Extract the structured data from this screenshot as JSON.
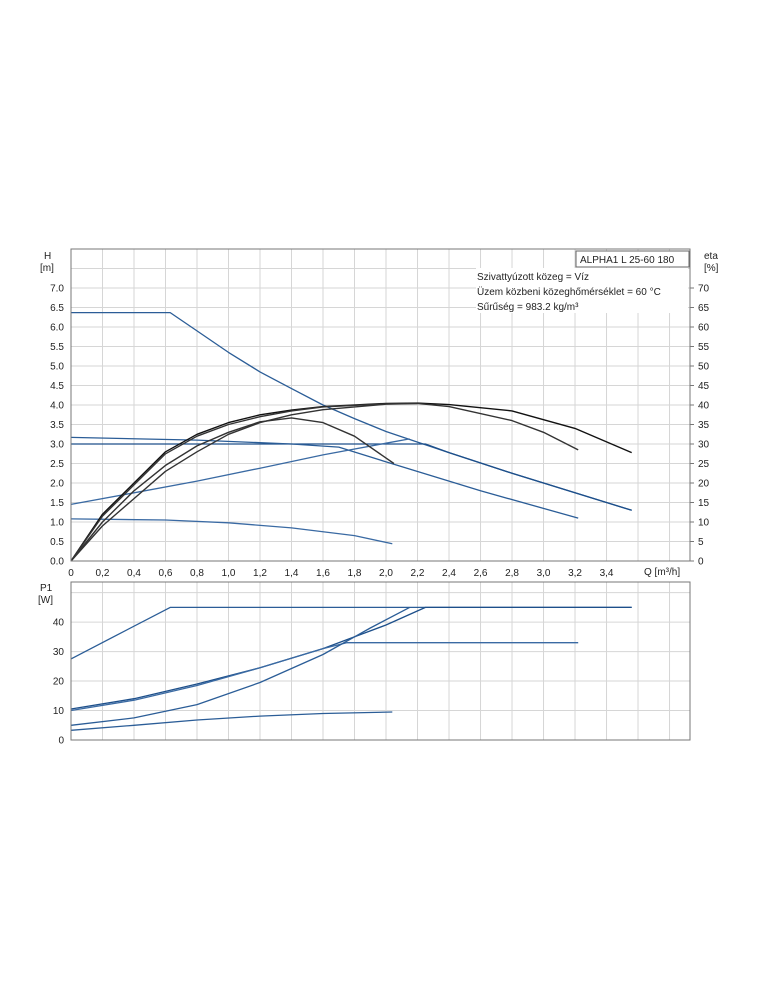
{
  "chart_data": [
    {
      "type": "line",
      "title": "ALPHA1 L 25-60 180",
      "annotations": [
        "Szivattyúzott közeg = Víz",
        "Üzem közbeni közeghőmérséklet = 60 °C",
        "Sűrűség = 983.2 kg/m³"
      ],
      "xlabel": "Q [m³/h]",
      "ylabel": "H",
      "ylabel_unit": "[m]",
      "y2label": "eta",
      "y2label_unit": "[%]",
      "xlim": [
        0,
        3.93
      ],
      "ylim": [
        0,
        8
      ],
      "y2lim": [
        0,
        80
      ],
      "grid": true,
      "xticks": [
        "0",
        "0,2",
        "0,4",
        "0,6",
        "0,8",
        "1,0",
        "1,2",
        "1,4",
        "1,6",
        "1,8",
        "2,0",
        "2,2",
        "2,4",
        "2,6",
        "2,8",
        "3,0",
        "3,2",
        "3,4"
      ],
      "yticks": [
        "0.0",
        "0.5",
        "1.0",
        "1.5",
        "2.0",
        "2.5",
        "3.0",
        "3.5",
        "4.0",
        "4.5",
        "5.0",
        "5.5",
        "6.0",
        "6.5",
        "7.0"
      ],
      "y2ticks": [
        "0",
        "5",
        "10",
        "15",
        "20",
        "25",
        "30",
        "35",
        "40",
        "45",
        "50",
        "55",
        "60",
        "65",
        "70"
      ],
      "series": [
        {
          "name": "H max curve",
          "axis": "H",
          "color": "#2b5d97",
          "points": [
            [
              0,
              6.37
            ],
            [
              0.63,
              6.37
            ],
            [
              0.8,
              5.9
            ],
            [
              1.0,
              5.35
            ],
            [
              1.2,
              4.85
            ],
            [
              1.4,
              4.42
            ],
            [
              1.6,
              4.0
            ],
            [
              1.8,
              3.65
            ],
            [
              2.0,
              3.32
            ],
            [
              2.2,
              3.05
            ],
            [
              2.4,
              2.78
            ],
            [
              2.8,
              2.25
            ],
            [
              3.2,
              1.75
            ],
            [
              3.56,
              1.3
            ]
          ]
        },
        {
          "name": "H constant pressure",
          "axis": "H",
          "color": "#1d4f8a",
          "points": [
            [
              0,
              3.0
            ],
            [
              2.25,
              3.0
            ],
            [
              2.4,
              2.78
            ],
            [
              2.8,
              2.25
            ],
            [
              3.2,
              1.75
            ],
            [
              3.56,
              1.3
            ]
          ]
        },
        {
          "name": "H proportional pressure high",
          "axis": "H",
          "color": "#2b5d97",
          "points": [
            [
              0,
              3.17
            ],
            [
              0.8,
              3.1
            ],
            [
              1.4,
              3.0
            ],
            [
              1.7,
              2.92
            ],
            [
              2.05,
              2.48
            ],
            [
              2.6,
              1.8
            ],
            [
              3.22,
              1.1
            ]
          ]
        },
        {
          "name": "H proportional pressure rising",
          "axis": "H",
          "color": "#3a6aa3",
          "points": [
            [
              0,
              1.45
            ],
            [
              0.4,
              1.75
            ],
            [
              0.8,
              2.05
            ],
            [
              1.2,
              2.38
            ],
            [
              1.6,
              2.72
            ],
            [
              2.0,
              3.02
            ],
            [
              2.15,
              3.13
            ]
          ]
        },
        {
          "name": "H min curve",
          "axis": "H",
          "color": "#3a6aa3",
          "points": [
            [
              0,
              1.08
            ],
            [
              0.6,
              1.05
            ],
            [
              1.0,
              0.98
            ],
            [
              1.4,
              0.85
            ],
            [
              1.8,
              0.65
            ],
            [
              2.04,
              0.44
            ]
          ]
        },
        {
          "name": "eta curve 1",
          "axis": "eta",
          "color": "#111111",
          "points": [
            [
              0,
              0
            ],
            [
              0.2,
              12
            ],
            [
              0.4,
              20
            ],
            [
              0.6,
              28
            ],
            [
              0.8,
              32.5
            ],
            [
              1.0,
              35.5
            ],
            [
              1.2,
              37.5
            ],
            [
              1.4,
              38.7
            ],
            [
              1.6,
              39.6
            ],
            [
              2.0,
              40.4
            ],
            [
              2.2,
              40.5
            ],
            [
              2.4,
              40.1
            ],
            [
              2.8,
              38.5
            ],
            [
              3.2,
              34
            ],
            [
              3.56,
              27.8
            ]
          ]
        },
        {
          "name": "eta curve 2",
          "axis": "eta",
          "color": "#333333",
          "points": [
            [
              0,
              0
            ],
            [
              0.2,
              11.5
            ],
            [
              0.4,
              19.5
            ],
            [
              0.6,
              27.5
            ],
            [
              0.8,
              32
            ],
            [
              1.0,
              35
            ],
            [
              1.2,
              37
            ],
            [
              1.4,
              38.5
            ],
            [
              1.6,
              39.5
            ],
            [
              2.0,
              40.3
            ],
            [
              2.2,
              40.4
            ],
            [
              2.4,
              39.6
            ],
            [
              2.8,
              36
            ],
            [
              3.0,
              33
            ],
            [
              3.22,
              28.5
            ]
          ]
        },
        {
          "name": "eta curve 3",
          "axis": "eta",
          "color": "#333333",
          "points": [
            [
              0,
              0
            ],
            [
              0.2,
              9
            ],
            [
              0.4,
              16
            ],
            [
              0.6,
              23
            ],
            [
              0.8,
              28
            ],
            [
              1.0,
              32.5
            ],
            [
              1.2,
              35.5
            ],
            [
              1.4,
              37.5
            ],
            [
              1.6,
              38.8
            ],
            [
              2.0,
              40.2
            ],
            [
              2.2,
              40.4
            ]
          ]
        },
        {
          "name": "eta curve 4",
          "axis": "eta",
          "color": "#333333",
          "points": [
            [
              0,
              0
            ],
            [
              0.2,
              10
            ],
            [
              0.4,
              18
            ],
            [
              0.6,
              24.5
            ],
            [
              0.8,
              29.5
            ],
            [
              1.0,
              33
            ],
            [
              1.2,
              35.7
            ],
            [
              1.4,
              36.7
            ],
            [
              1.6,
              35.5
            ],
            [
              1.8,
              32
            ],
            [
              2.05,
              25
            ]
          ]
        }
      ]
    },
    {
      "type": "line",
      "xlabel": "Q [m³/h]",
      "ylabel": "P1",
      "ylabel_unit": "[W]",
      "xlim": [
        0,
        3.93
      ],
      "ylim": [
        0,
        53.6
      ],
      "grid": true,
      "yticks": [
        "0",
        "10",
        "20",
        "30",
        "40"
      ],
      "series": [
        {
          "name": "P1 max",
          "color": "#2b5d97",
          "points": [
            [
              0,
              27.5
            ],
            [
              0.63,
              45
            ],
            [
              3.56,
              45
            ]
          ]
        },
        {
          "name": "P1 constant pressure",
          "color": "#1d4f8a",
          "points": [
            [
              0,
              10.5
            ],
            [
              0.4,
              14
            ],
            [
              0.8,
              19
            ],
            [
              1.2,
              24.5
            ],
            [
              1.6,
              31
            ],
            [
              2.0,
              39
            ],
            [
              2.25,
              45
            ],
            [
              3.56,
              45
            ]
          ]
        },
        {
          "name": "P1 proportional high",
          "color": "#3a6aa3",
          "points": [
            [
              0,
              10
            ],
            [
              0.4,
              13.5
            ],
            [
              0.8,
              18.5
            ],
            [
              1.2,
              24.5
            ],
            [
              1.6,
              31
            ],
            [
              1.75,
              33
            ],
            [
              3.22,
              33
            ]
          ]
        },
        {
          "name": "P1 proportional rising",
          "color": "#2b5d97",
          "points": [
            [
              0,
              5
            ],
            [
              0.4,
              7.5
            ],
            [
              0.8,
              12
            ],
            [
              1.2,
              19.5
            ],
            [
              1.6,
              29
            ],
            [
              1.9,
              38
            ],
            [
              2.15,
              45
            ]
          ]
        },
        {
          "name": "P1 min",
          "color": "#2b5d97",
          "points": [
            [
              0,
              3.3
            ],
            [
              0.4,
              5
            ],
            [
              0.8,
              6.8
            ],
            [
              1.2,
              8.1
            ],
            [
              1.6,
              9
            ],
            [
              2.04,
              9.5
            ]
          ]
        }
      ]
    }
  ]
}
